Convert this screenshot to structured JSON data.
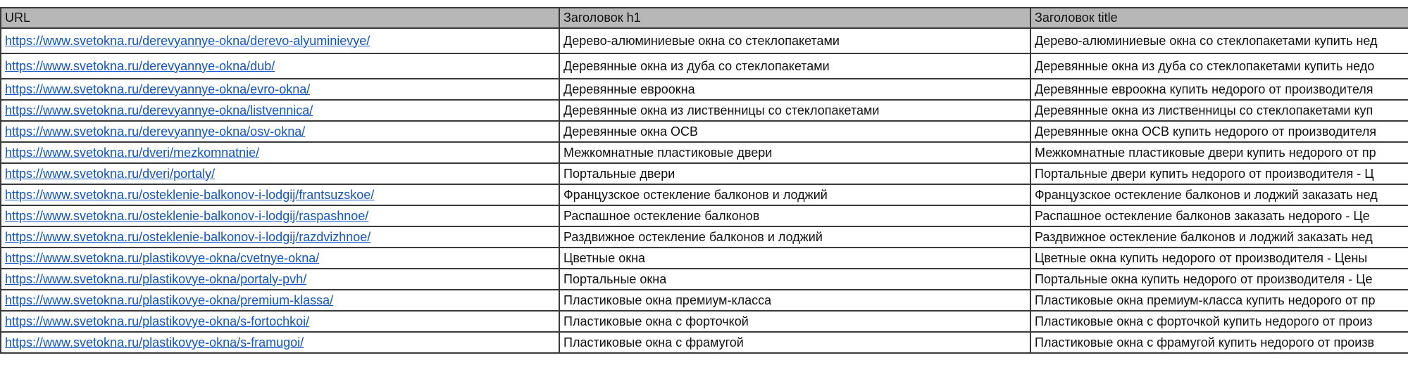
{
  "header": {
    "col_url": "URL",
    "col_h1": "Заголовок h1",
    "col_title": "Заголовок title"
  },
  "colors": {
    "link": "#1155cc",
    "header_bg": "#b7b7b7",
    "border": "#3a3a3a"
  },
  "rows": [
    {
      "url": "https://www.svetokna.ru/derevyannye-okna/derevo-alyuminievye/",
      "h1": "Дерево-алюминиевые окна со стеклопакетами",
      "title": "Дерево-алюминиевые окна со стеклопакетами купить нед"
    },
    {
      "url": "https://www.svetokna.ru/derevyannye-okna/dub/",
      "h1": "Деревянные окна из дуба со стеклопакетами",
      "title": "Деревянные окна из дуба со стеклопакетами купить недо"
    },
    {
      "url": "https://www.svetokna.ru/derevyannye-okna/evro-okna/",
      "h1": "Деревянные евроокна",
      "title": "Деревянные евроокна купить недорого от производителя"
    },
    {
      "url": "https://www.svetokna.ru/derevyannye-okna/listvennica/",
      "h1": "Деревянные окна из лиственницы со стеклопакетами",
      "title": "Деревянные окна из лиственницы со стеклопакетами куп"
    },
    {
      "url": "https://www.svetokna.ru/derevyannye-okna/osv-okna/",
      "h1": "Деревянные окна ОСВ",
      "title": "Деревянные окна ОСВ купить недорого от производителя"
    },
    {
      "url": "https://www.svetokna.ru/dveri/mezkomnatnie/",
      "h1": "Межкомнатные пластиковые двери",
      "title": "Межкомнатные пластиковые двери купить недорого от пр"
    },
    {
      "url": "https://www.svetokna.ru/dveri/portaly/",
      "h1": "Портальные двери",
      "title": "Портальные двери купить недорого от производителя - Ц"
    },
    {
      "url": "https://www.svetokna.ru/osteklenie-balkonov-i-lodgij/frantsuzskoe/",
      "h1": "Французское остекление балконов и лоджий",
      "title": "Французское остекление балконов и лоджий заказать нед"
    },
    {
      "url": "https://www.svetokna.ru/osteklenie-balkonov-i-lodgij/raspashnoe/",
      "h1": "Распашное остекление балконов",
      "title": "Распашное остекление балконов заказать недорого - Це"
    },
    {
      "url": "https://www.svetokna.ru/osteklenie-balkonov-i-lodgij/razdvizhnoe/",
      "h1": "Раздвижное остекление балконов и лоджий",
      "title": "Раздвижное остекление балконов и лоджий заказать нед"
    },
    {
      "url": "https://www.svetokna.ru/plastikovye-okna/cvetnye-okna/",
      "h1": "Цветные окна",
      "title": "Цветные окна купить недорого от производителя - Цены"
    },
    {
      "url": "https://www.svetokna.ru/plastikovye-okna/portaly-pvh/",
      "h1": "Портальные окна",
      "title": "Портальные окна купить недорого от производителя - Це"
    },
    {
      "url": "https://www.svetokna.ru/plastikovye-okna/premium-klassa/",
      "h1": "Пластиковые окна премиум-класса",
      "title": "Пластиковые окна премиум-класса купить недорого от пр"
    },
    {
      "url": "https://www.svetokna.ru/plastikovye-okna/s-fortochkoi/",
      "h1": "Пластиковые окна с форточкой",
      "title": "Пластиковые окна с форточкой купить недорого от произ"
    },
    {
      "url": "https://www.svetokna.ru/plastikovye-okna/s-framugoi/",
      "h1": "Пластиковые окна с фрамугой",
      "title": "Пластиковые окна с фрамугой купить недорого от произв"
    }
  ]
}
